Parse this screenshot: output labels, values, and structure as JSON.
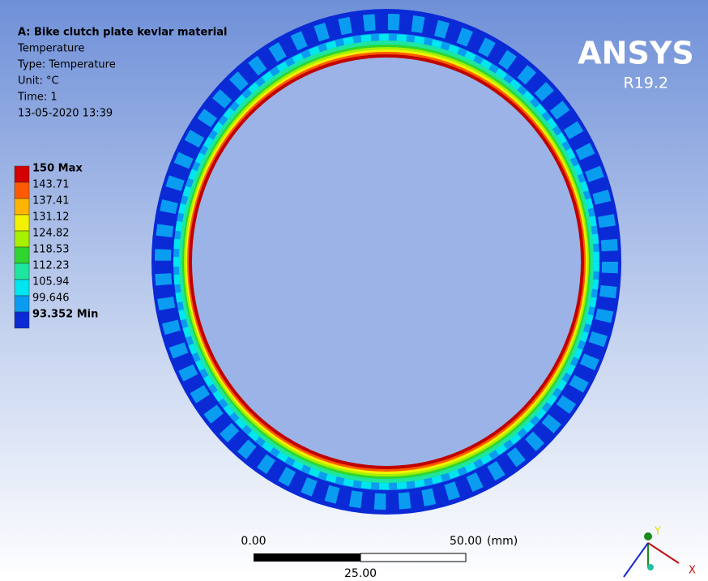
{
  "header": {
    "title": "A: Bike clutch plate kevlar material",
    "lines": [
      "Temperature",
      "Type: Temperature",
      "Unit: °C",
      "Time: 1",
      "13-05-2020 13:39"
    ]
  },
  "legend": {
    "entries": [
      {
        "label": "150 Max",
        "color": "#d40000"
      },
      {
        "label": "143.71",
        "color": "#ff5a00"
      },
      {
        "label": "137.41",
        "color": "#ffb400"
      },
      {
        "label": "131.12",
        "color": "#f2f200"
      },
      {
        "label": "124.82",
        "color": "#a6f000"
      },
      {
        "label": "118.53",
        "color": "#2fd62f"
      },
      {
        "label": "112.23",
        "color": "#1ee6a0"
      },
      {
        "label": "105.94",
        "color": "#00e6f0"
      },
      {
        "label": "99.646",
        "color": "#0a9cf0"
      },
      {
        "label": "93.352 Min",
        "color": "#0a2ad6"
      }
    ]
  },
  "logo": {
    "name": "ANSYS",
    "version": "R19.2"
  },
  "scale": {
    "left": "0.00",
    "right": "50.00",
    "unit": "(mm)",
    "mid": "25.00"
  },
  "triad": {
    "y": "Y",
    "x": "X"
  }
}
